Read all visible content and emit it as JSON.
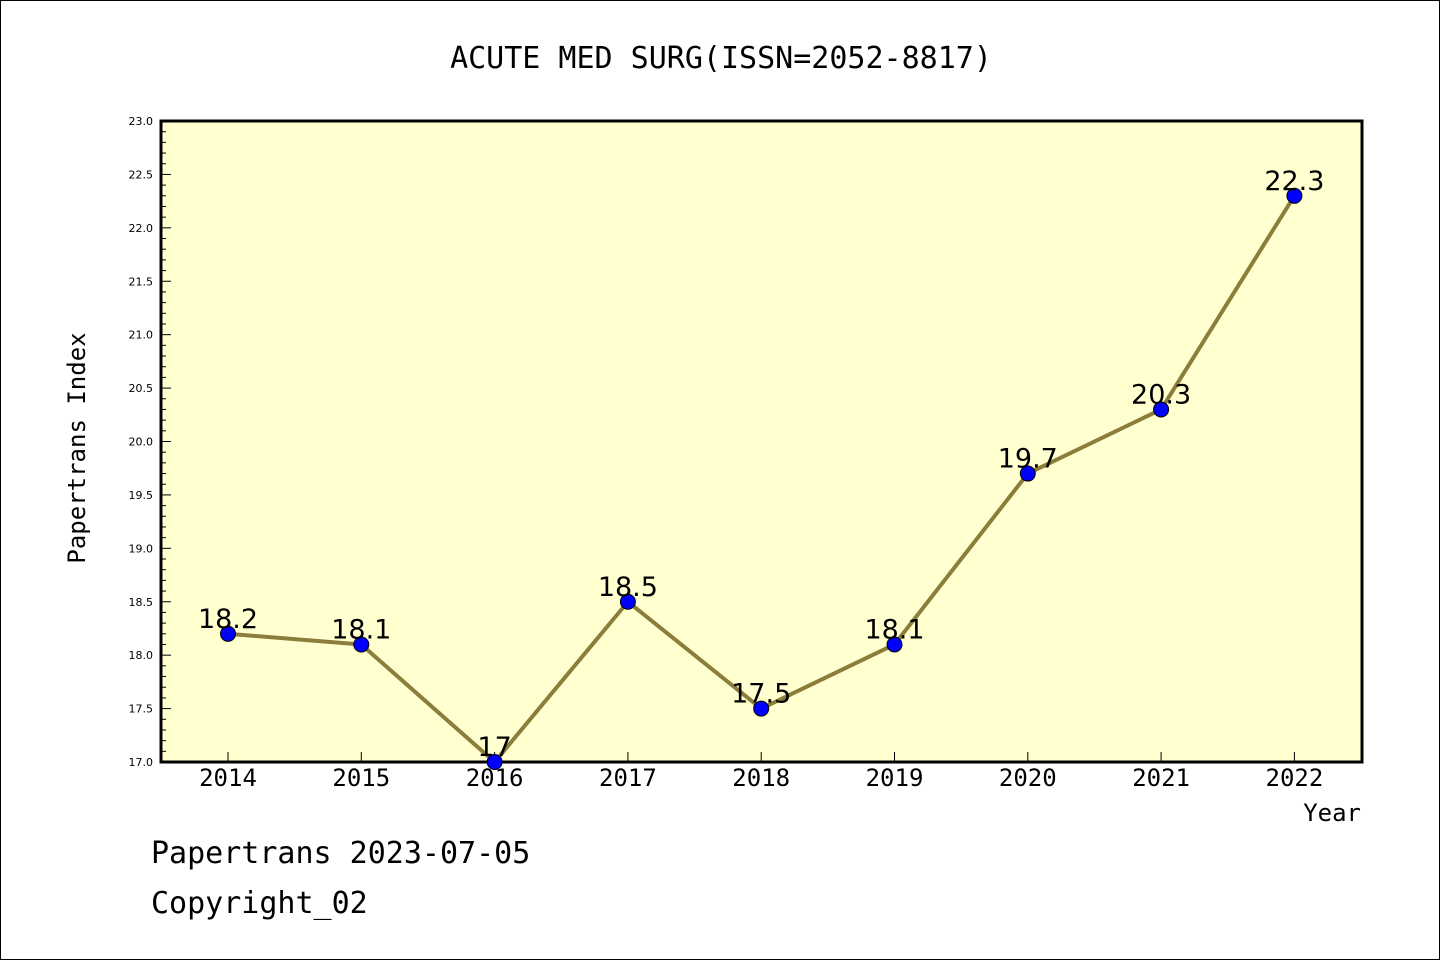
{
  "chart_data": {
    "type": "line",
    "title": "ACUTE MED SURG(ISSN=2052-8817)",
    "xlabel": "Year",
    "ylabel": "Papertrans Index",
    "categories": [
      "2014",
      "2015",
      "2016",
      "2017",
      "2018",
      "2019",
      "2020",
      "2021",
      "2022"
    ],
    "series": [
      {
        "values": [
          18.2,
          18.1,
          17,
          18.5,
          17.5,
          18.1,
          19.7,
          20.3,
          22.3
        ]
      }
    ],
    "data_labels": [
      "18.2",
      "18.1",
      "17",
      "18.5",
      "17.5",
      "18.1",
      "19.7",
      "20.3",
      "22.3"
    ],
    "ylim": [
      17.0,
      23.0
    ],
    "yticks": [
      "17.0",
      "17.5",
      "18.0",
      "18.5",
      "19.0",
      "19.5",
      "20.0",
      "20.5",
      "21.0",
      "21.5",
      "22.0",
      "22.5",
      "23.0"
    ],
    "grid": false,
    "colors": {
      "line": "#8b7d3a",
      "marker": "#0000ff",
      "plot_bg": "#ffffd0"
    }
  },
  "footer": {
    "line1": "Papertrans 2023-07-05",
    "line2": "Copyright_02"
  }
}
